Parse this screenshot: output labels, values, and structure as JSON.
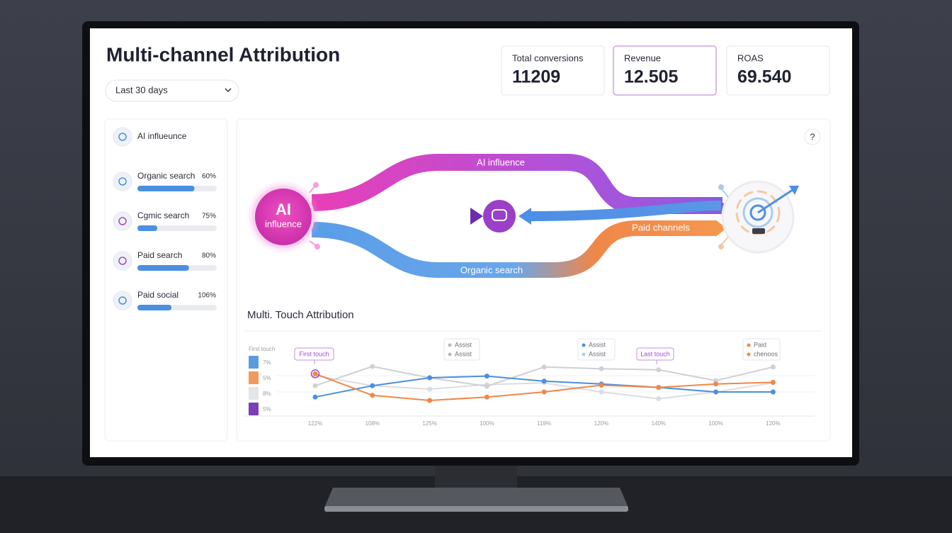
{
  "header": {
    "title": "Multi-channel Attribution",
    "date_range": "Last 30 days"
  },
  "kpis": [
    {
      "label": "Total conversions",
      "value": "11209"
    },
    {
      "label": "Revenue",
      "value": "12.505"
    },
    {
      "label": "ROAS",
      "value": "69.540"
    }
  ],
  "channels": [
    {
      "name": "AI influeunce"
    },
    {
      "name": "Organic search",
      "percent": "60%",
      "fill": 72
    },
    {
      "name": "Cgmic search",
      "percent": "75%",
      "fill": 25
    },
    {
      "name": "Paid search",
      "percent": "80%",
      "fill": 65
    },
    {
      "name": "Paid social",
      "percent": "106%",
      "fill": 43
    }
  ],
  "help": "?",
  "flow": {
    "source_lines": [
      "AI",
      "influence"
    ],
    "top_label": "AI influence",
    "right_label": "Paid channels",
    "bottom_label": "Organic search"
  },
  "chart_data": {
    "type": "line",
    "title": "Multi. Touch Attribution",
    "categories": [
      "122%",
      "108%",
      "125%",
      "100%",
      "119%",
      "120%",
      "140%",
      "100%",
      "120%"
    ],
    "ylim": [
      0,
      100
    ],
    "series": [
      {
        "color": "#dcdde2",
        "values": [
          69,
          51,
          45,
          53,
          56,
          40,
          28,
          40,
          56
        ]
      },
      {
        "color": "#cfd0d5",
        "values": [
          51,
          85,
          65,
          50,
          84,
          81,
          79,
          60,
          84
        ]
      },
      {
        "color": "#4a8fe0",
        "values": [
          31,
          51,
          65,
          68,
          59,
          54,
          48,
          40,
          40
        ]
      },
      {
        "color": "#f0874a",
        "values": [
          72,
          34,
          25,
          31,
          40,
          52,
          48,
          54,
          57
        ]
      }
    ],
    "legend_title": "First touch",
    "legend": [
      {
        "label": "7%",
        "color": "#5b9be0"
      },
      {
        "label": "5%",
        "color": "#f29a5e"
      },
      {
        "label": "8%",
        "color": "#e4e5e8"
      },
      {
        "label": "5%",
        "color": "#7b3fb8"
      }
    ],
    "annotations": [
      {
        "lines": [
          "First touch"
        ],
        "color": "#a04bc8"
      },
      {
        "lines": [
          "Assist",
          "Assist"
        ],
        "color": "#b8b9be"
      },
      {
        "lines": [
          "Assist",
          "Assist"
        ],
        "color": "#4a8fe0"
      },
      {
        "lines": [
          "Last touch"
        ],
        "color": "#a04bc8"
      },
      {
        "lines": [
          "Paid",
          "chenoos"
        ],
        "color": "#f0874a"
      }
    ]
  }
}
